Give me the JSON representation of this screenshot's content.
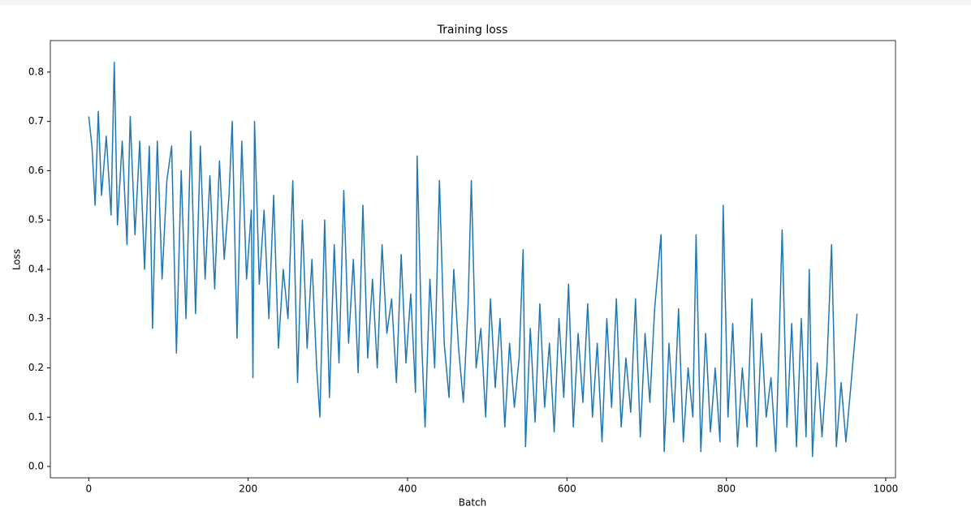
{
  "chart_data": {
    "type": "line",
    "title": "Training loss",
    "x_label": "Batch",
    "y_label": "Loss",
    "x": [
      0,
      4,
      8,
      12,
      16,
      22,
      28,
      32,
      36,
      42,
      48,
      52,
      58,
      64,
      70,
      76,
      80,
      86,
      92,
      98,
      104,
      110,
      116,
      122,
      128,
      134,
      140,
      146,
      152,
      158,
      164,
      170,
      176,
      180,
      186,
      192,
      198,
      204,
      206,
      208,
      214,
      220,
      226,
      232,
      238,
      244,
      250,
      256,
      262,
      268,
      274,
      280,
      286,
      290,
      296,
      302,
      308,
      314,
      320,
      326,
      332,
      338,
      344,
      350,
      356,
      362,
      368,
      374,
      380,
      386,
      392,
      398,
      404,
      410,
      412,
      418,
      422,
      428,
      434,
      440,
      446,
      452,
      458,
      464,
      470,
      476,
      480,
      486,
      492,
      498,
      504,
      510,
      516,
      522,
      528,
      534,
      540,
      545,
      548,
      554,
      560,
      566,
      572,
      578,
      584,
      590,
      596,
      602,
      608,
      614,
      620,
      626,
      632,
      638,
      644,
      650,
      656,
      662,
      668,
      674,
      680,
      686,
      692,
      698,
      704,
      710,
      718,
      722,
      728,
      734,
      740,
      746,
      752,
      758,
      762,
      768,
      774,
      780,
      786,
      792,
      796,
      802,
      808,
      814,
      820,
      826,
      832,
      838,
      844,
      850,
      856,
      862,
      866,
      870,
      876,
      882,
      888,
      894,
      900,
      904,
      908,
      914,
      920,
      926,
      932,
      938,
      944,
      950,
      956,
      964
    ],
    "series": [
      {
        "name": "Training loss",
        "color": "#1f77b4",
        "values": [
          0.71,
          0.65,
          0.53,
          0.72,
          0.55,
          0.67,
          0.51,
          0.82,
          0.49,
          0.66,
          0.45,
          0.71,
          0.47,
          0.66,
          0.4,
          0.65,
          0.28,
          0.66,
          0.38,
          0.58,
          0.65,
          0.23,
          0.6,
          0.3,
          0.68,
          0.31,
          0.65,
          0.38,
          0.59,
          0.36,
          0.62,
          0.42,
          0.55,
          0.7,
          0.26,
          0.66,
          0.38,
          0.52,
          0.18,
          0.7,
          0.37,
          0.52,
          0.3,
          0.55,
          0.24,
          0.4,
          0.3,
          0.58,
          0.17,
          0.5,
          0.24,
          0.42,
          0.2,
          0.1,
          0.5,
          0.14,
          0.45,
          0.21,
          0.56,
          0.25,
          0.42,
          0.19,
          0.53,
          0.22,
          0.38,
          0.2,
          0.45,
          0.27,
          0.34,
          0.17,
          0.43,
          0.21,
          0.35,
          0.15,
          0.63,
          0.24,
          0.08,
          0.38,
          0.2,
          0.58,
          0.25,
          0.14,
          0.4,
          0.24,
          0.13,
          0.33,
          0.58,
          0.2,
          0.28,
          0.1,
          0.34,
          0.16,
          0.3,
          0.08,
          0.25,
          0.12,
          0.22,
          0.44,
          0.04,
          0.28,
          0.09,
          0.33,
          0.12,
          0.25,
          0.07,
          0.3,
          0.14,
          0.37,
          0.08,
          0.27,
          0.13,
          0.33,
          0.1,
          0.25,
          0.05,
          0.3,
          0.12,
          0.34,
          0.08,
          0.22,
          0.11,
          0.34,
          0.06,
          0.27,
          0.13,
          0.32,
          0.47,
          0.03,
          0.25,
          0.09,
          0.32,
          0.05,
          0.2,
          0.1,
          0.47,
          0.03,
          0.27,
          0.07,
          0.2,
          0.05,
          0.53,
          0.1,
          0.29,
          0.04,
          0.2,
          0.08,
          0.34,
          0.04,
          0.27,
          0.1,
          0.18,
          0.03,
          0.24,
          0.48,
          0.08,
          0.29,
          0.04,
          0.3,
          0.06,
          0.4,
          0.02,
          0.21,
          0.06,
          0.2,
          0.45,
          0.04,
          0.17,
          0.05,
          0.16,
          0.31
        ]
      }
    ],
    "xlim": [
      -48.2,
      1012.2
    ],
    "ylim": [
      -0.023,
      0.864
    ],
    "xticks": [
      0,
      200,
      400,
      600,
      800,
      1000
    ],
    "yticks": [
      {
        "value": 0,
        "label": "0.0"
      },
      0.1,
      0.2,
      0.3,
      0.4,
      0.5,
      0.6,
      0.7,
      0.8
    ]
  }
}
